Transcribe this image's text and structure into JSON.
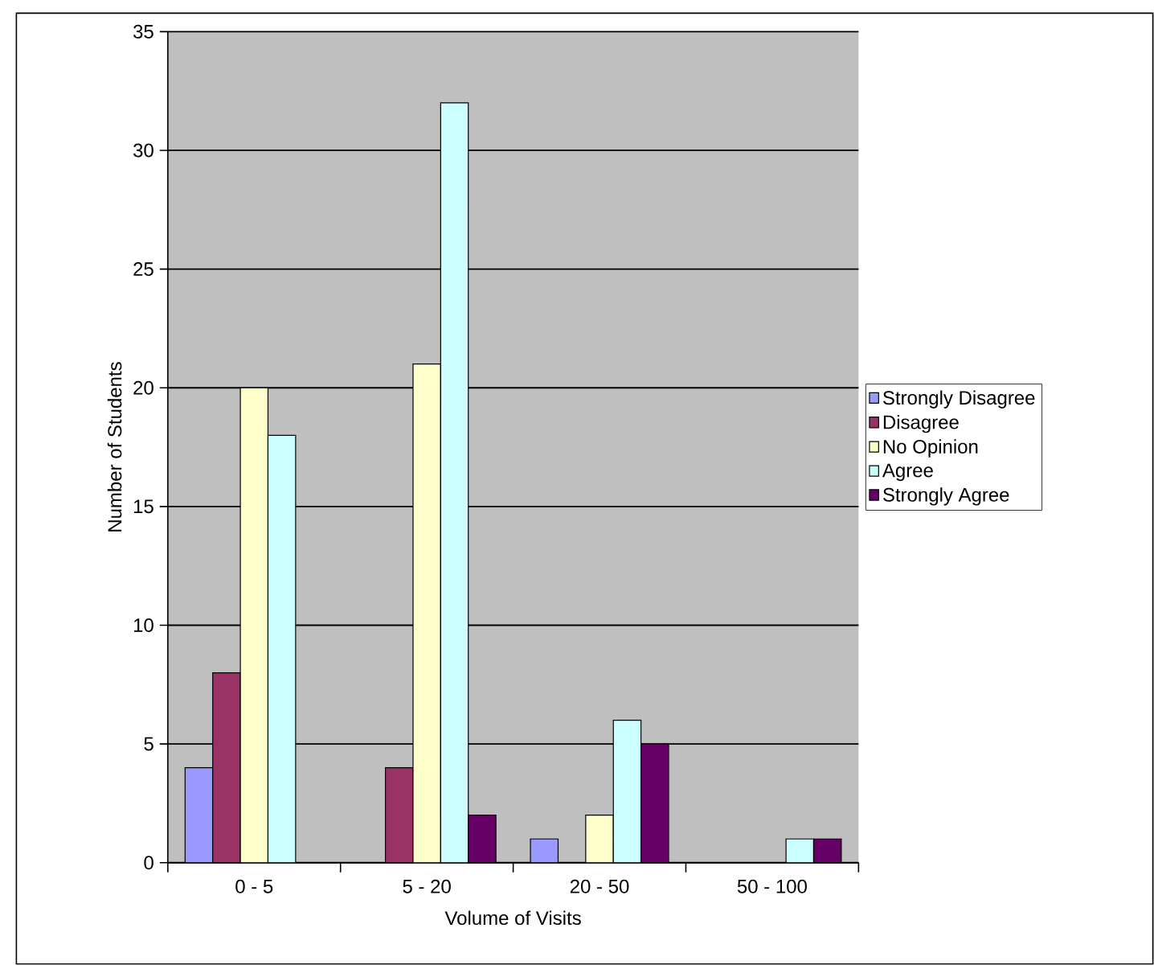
{
  "chart_data": {
    "type": "bar",
    "xlabel": "Volume of Visits",
    "ylabel": "Number of Students",
    "categories": [
      "0 - 5",
      "5 - 20",
      "20 - 50",
      "50 - 100"
    ],
    "series": [
      {
        "name": "Strongly Disagree",
        "color": "#9999ff",
        "values": [
          4,
          0,
          1,
          0
        ]
      },
      {
        "name": "Disagree",
        "color": "#993366",
        "values": [
          8,
          4,
          0,
          0
        ]
      },
      {
        "name": "No Opinion",
        "color": "#ffffcc",
        "values": [
          20,
          21,
          2,
          0
        ]
      },
      {
        "name": "Agree",
        "color": "#ccffff",
        "values": [
          18,
          32,
          6,
          1
        ]
      },
      {
        "name": "Strongly Agree",
        "color": "#660066",
        "values": [
          0,
          2,
          5,
          1
        ]
      }
    ],
    "ylim": [
      0,
      35
    ],
    "yticks": [
      0,
      5,
      10,
      15,
      20,
      25,
      30,
      35
    ],
    "grid": "y",
    "legend": "right"
  }
}
